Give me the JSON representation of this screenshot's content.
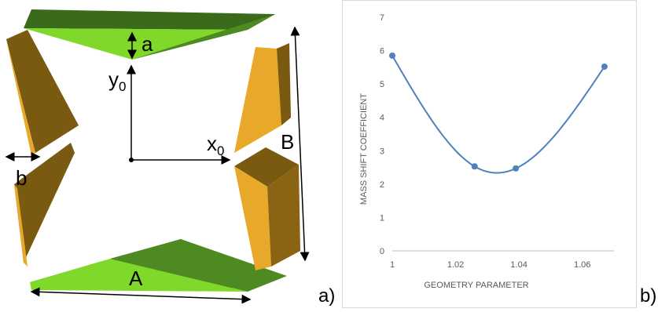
{
  "diagram": {
    "labels": {
      "a_small": "a",
      "b_small": "b",
      "A_big": "A",
      "B_big": "B",
      "y0_main": "y",
      "y0_sub": "0",
      "x0_main": "x",
      "x0_sub": "0"
    },
    "colors": {
      "green_light": "#7fd82a",
      "green_dark": "#3a6b1a",
      "gold_light": "#e8a82a",
      "gold_dark": "#7a5a10"
    }
  },
  "panel_labels": {
    "a": "a)",
    "b": "b)"
  },
  "chart_data": {
    "type": "line",
    "smooth": true,
    "x": [
      1,
      1.026,
      1.039,
      1.067
    ],
    "y": [
      5.85,
      2.53,
      2.47,
      5.52
    ],
    "xlabel": "GEOMETRY PARAMETER",
    "ylabel": "MASS SHIFT COEFFICIENT",
    "xlim": [
      1,
      1.07
    ],
    "ylim": [
      0,
      7
    ],
    "xticks": [
      "1",
      "1.02",
      "1.04",
      "1.06"
    ],
    "yticks": [
      "0",
      "1",
      "2",
      "3",
      "4",
      "5",
      "6",
      "7"
    ],
    "grid": false,
    "series_color": "#4f81bd"
  }
}
